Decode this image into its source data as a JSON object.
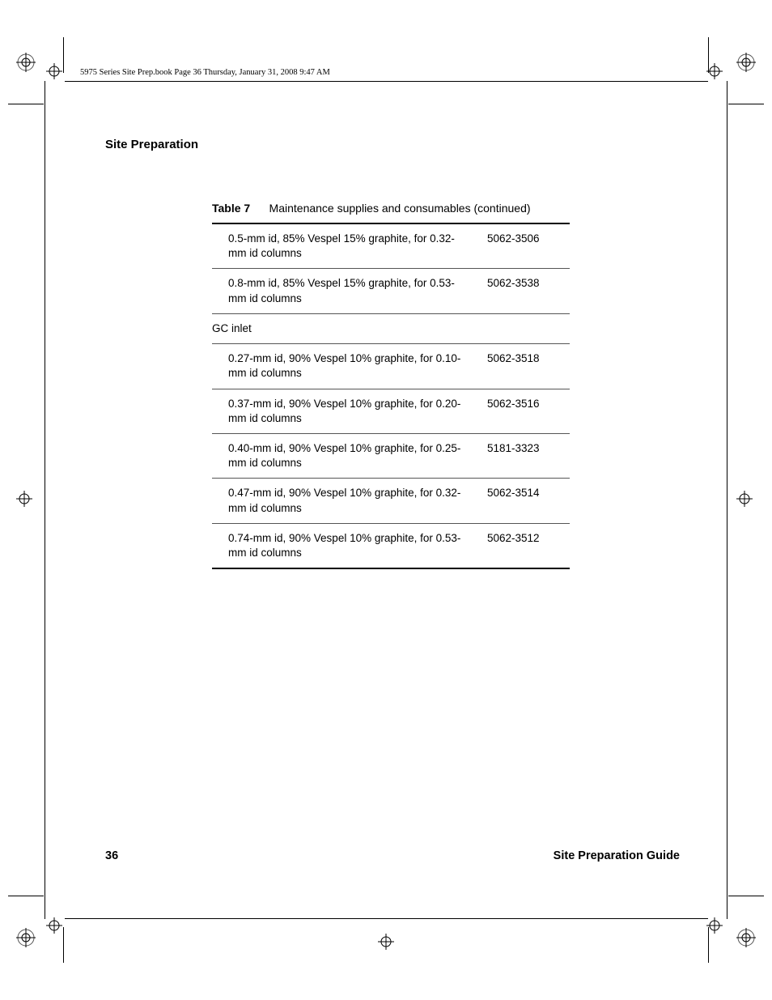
{
  "header_line": "5975 Series Site Prep.book  Page 36  Thursday, January 31, 2008  9:47 AM",
  "section_title": "Site Preparation",
  "table": {
    "label": "Table 7",
    "caption": "Maintenance supplies and consumables (continued)",
    "rows": [
      {
        "type": "item",
        "desc": "0.5-mm id, 85% Vespel 15% graphite, for 0.32-mm id columns",
        "part": "5062-3506"
      },
      {
        "type": "item",
        "desc": "0.8-mm id, 85% Vespel 15% graphite, for 0.53-mm id columns",
        "part": "5062-3538"
      },
      {
        "type": "group",
        "desc": "GC inlet",
        "part": ""
      },
      {
        "type": "item",
        "desc": "0.27-mm id, 90% Vespel 10% graphite, for 0.10-mm id columns",
        "part": "5062-3518"
      },
      {
        "type": "item",
        "desc": "0.37-mm id, 90% Vespel 10% graphite, for 0.20-mm id columns",
        "part": "5062-3516"
      },
      {
        "type": "item",
        "desc": "0.40-mm id, 90% Vespel 10% graphite, for 0.25-mm id columns",
        "part": "5181-3323"
      },
      {
        "type": "item",
        "desc": "0.47-mm id, 90% Vespel 10% graphite, for 0.32-mm id columns",
        "part": "5062-3514"
      },
      {
        "type": "item",
        "desc": "0.74-mm id, 90% Vespel 10% graphite, for 0.53-mm id columns",
        "part": "5062-3512"
      }
    ]
  },
  "footer": {
    "page": "36",
    "guide": "Site Preparation Guide"
  },
  "colors": {
    "text": "#000000",
    "bg": "#ffffff",
    "rule": "#000000",
    "rowline": "#555555"
  },
  "crop_marks": {
    "outer_margin": 12,
    "inner_inset": 55,
    "length_long": 870,
    "length_short": 44
  }
}
